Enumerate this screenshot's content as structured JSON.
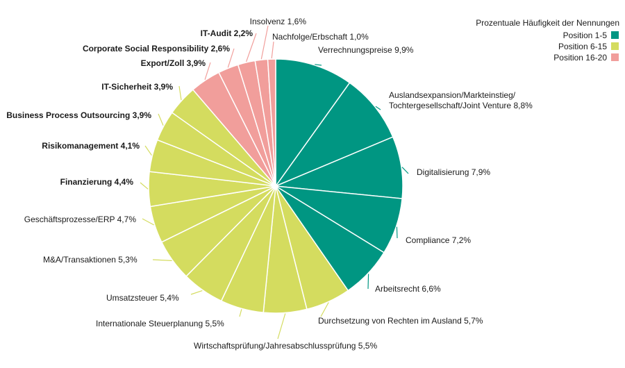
{
  "chart_data": {
    "type": "pie",
    "legend": {
      "title": "Prozentuale Häufigkeit der Nennungen",
      "position": "top-right",
      "entries": [
        {
          "label": "Position 1-5",
          "color": "#009682"
        },
        {
          "label": "Position 6-15",
          "color": "#d4dc5f"
        },
        {
          "label": "Position 16-20",
          "color": "#f19e9b"
        }
      ]
    },
    "slices": [
      {
        "name": "Verrechnungspreise",
        "value": 9.9,
        "value_label": "9,9%",
        "group": 0
      },
      {
        "name": "Auslandsexpansion/Markteinstieg/",
        "name2": "Tochtergesellschaft/Joint Venture",
        "value": 8.8,
        "value_label": "8,8%",
        "group": 0
      },
      {
        "name": "Digitalisierung",
        "value": 7.9,
        "value_label": "7,9%",
        "group": 0
      },
      {
        "name": "Compliance",
        "value": 7.2,
        "value_label": "7,2%",
        "group": 0
      },
      {
        "name": "Arbeitsrecht",
        "value": 6.6,
        "value_label": "6,6%",
        "group": 0
      },
      {
        "name": "Durchsetzung von Rechten im Ausland",
        "value": 5.7,
        "value_label": "5,7%",
        "group": 1
      },
      {
        "name": "Wirtschaftsprüfung/Jahresabschlussprüfung",
        "value": 5.5,
        "value_label": "5,5%",
        "group": 1
      },
      {
        "name": "Internationale Steuerplanung",
        "value": 5.5,
        "value_label": "5,5%",
        "group": 1
      },
      {
        "name": "Umsatzsteuer",
        "value": 5.4,
        "value_label": "5,4%",
        "group": 1
      },
      {
        "name": "M&A/Transaktionen",
        "value": 5.3,
        "value_label": "5,3%",
        "group": 1
      },
      {
        "name": "Geschäftsprozesse/ERP",
        "value": 4.7,
        "value_label": "4,7%",
        "group": 1
      },
      {
        "name": "Finanzierung",
        "value": 4.4,
        "value_label": "4,4%",
        "group": 1
      },
      {
        "name": "Risikomanagement",
        "value": 4.1,
        "value_label": "4,1%",
        "group": 1
      },
      {
        "name": "Business Process Outsourcing",
        "value": 3.9,
        "value_label": "3,9%",
        "group": 1
      },
      {
        "name": "IT-Sicherheit",
        "value": 3.9,
        "value_label": "3,9%",
        "group": 1
      },
      {
        "name": "Export/Zoll",
        "value": 3.9,
        "value_label": "3,9%",
        "group": 2
      },
      {
        "name": "Corporate Social Responsibility",
        "value": 2.6,
        "value_label": "2,6%",
        "group": 2
      },
      {
        "name": "IT-Audit",
        "value": 2.2,
        "value_label": "2,2%",
        "group": 2
      },
      {
        "name": "Insolvenz",
        "value": 1.6,
        "value_label": "1,6%",
        "group": 2
      },
      {
        "name": "Nachfolge/Erbschaft",
        "value": 1.0,
        "value_label": "1,0%",
        "group": 2
      }
    ]
  }
}
